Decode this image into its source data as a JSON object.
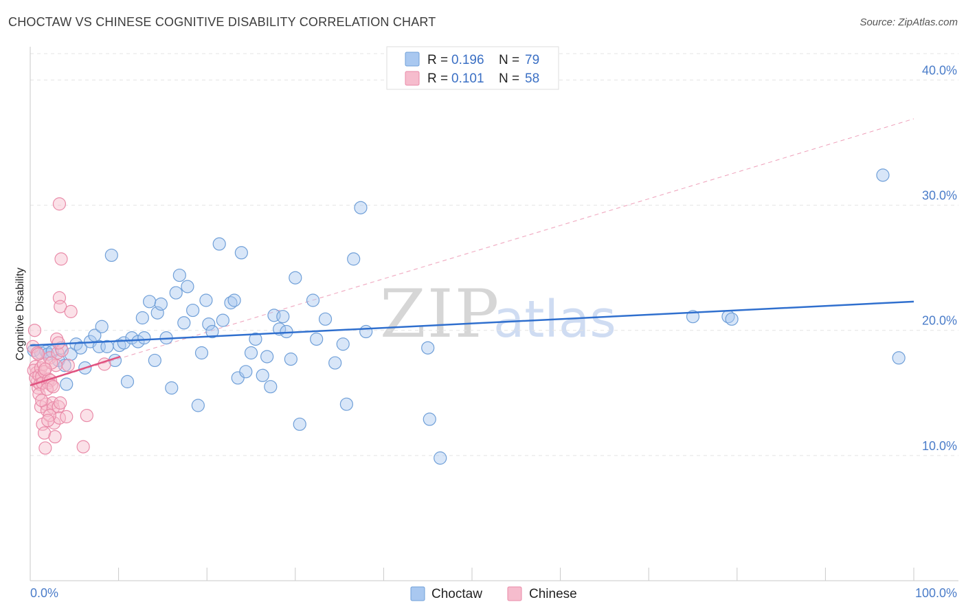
{
  "header": {
    "title": "CHOCTAW VS CHINESE COGNITIVE DISABILITY CORRELATION CHART",
    "source": "Source: ZipAtlas.com"
  },
  "colors": {
    "choctaw_fill": "#a9c8f0",
    "choctaw_stroke": "#6f9fd8",
    "choctaw_line": "#2f6fce",
    "chinese_fill": "#f6bccd",
    "chinese_stroke": "#e98aa8",
    "chinese_line": "#e0517f",
    "grid": "#e4e4e4"
  },
  "watermark": {
    "part1": "ZIP",
    "part2": "atlas"
  },
  "legend": {
    "r_label": "R =",
    "n_label": "N =",
    "rows": [
      {
        "series": "Choctaw",
        "r": "0.196",
        "n": "79"
      },
      {
        "series": "Chinese",
        "r": "0.101",
        "n": "58"
      }
    ]
  },
  "bottom_legend": [
    "Choctaw",
    "Chinese"
  ],
  "chart_data": {
    "type": "scatter",
    "title": "CHOCTAW VS CHINESE COGNITIVE DISABILITY CORRELATION CHART",
    "xlabel": "",
    "ylabel": "Cognitive Disability",
    "xlim": [
      0,
      100
    ],
    "ylim": [
      0,
      42
    ],
    "x_tick_labels": [
      "0.0%",
      "100.0%"
    ],
    "y_ticks": [
      10,
      20,
      30,
      40
    ],
    "y_tick_labels": [
      "10.0%",
      "20.0%",
      "30.0%",
      "40.0%"
    ],
    "series": [
      {
        "name": "Choctaw",
        "r": 0.196,
        "n": 79,
        "trend": {
          "x": [
            0,
            100
          ],
          "y": [
            18.8,
            22.3
          ]
        },
        "points": [
          [
            0.4,
            18.4
          ],
          [
            1.2,
            18.2
          ],
          [
            1.8,
            18.3
          ],
          [
            2.0,
            18.1
          ],
          [
            2.5,
            18.3
          ],
          [
            3.2,
            17.6
          ],
          [
            3.5,
            18.6
          ],
          [
            3.9,
            17.2
          ],
          [
            4.1,
            15.7
          ],
          [
            4.6,
            18.1
          ],
          [
            5.2,
            18.9
          ],
          [
            5.7,
            18.6
          ],
          [
            6.2,
            17.0
          ],
          [
            6.8,
            19.1
          ],
          [
            7.3,
            19.6
          ],
          [
            7.8,
            18.7
          ],
          [
            8.1,
            20.3
          ],
          [
            8.7,
            18.7
          ],
          [
            9.2,
            26.0
          ],
          [
            9.6,
            17.6
          ],
          [
            10.1,
            18.8
          ],
          [
            10.6,
            19.0
          ],
          [
            11.0,
            15.9
          ],
          [
            11.5,
            19.4
          ],
          [
            12.2,
            19.1
          ],
          [
            12.7,
            21.0
          ],
          [
            12.9,
            19.4
          ],
          [
            13.5,
            22.3
          ],
          [
            14.1,
            17.6
          ],
          [
            14.4,
            21.4
          ],
          [
            14.8,
            22.1
          ],
          [
            15.4,
            19.4
          ],
          [
            16.0,
            15.4
          ],
          [
            16.5,
            23.0
          ],
          [
            16.9,
            24.4
          ],
          [
            17.4,
            20.6
          ],
          [
            17.8,
            23.5
          ],
          [
            18.4,
            21.6
          ],
          [
            19.0,
            14.0
          ],
          [
            19.4,
            18.2
          ],
          [
            19.9,
            22.4
          ],
          [
            20.2,
            20.5
          ],
          [
            20.6,
            19.9
          ],
          [
            21.4,
            26.9
          ],
          [
            21.8,
            20.8
          ],
          [
            22.7,
            22.2
          ],
          [
            23.1,
            22.4
          ],
          [
            23.5,
            16.2
          ],
          [
            23.9,
            26.2
          ],
          [
            24.4,
            16.7
          ],
          [
            25.0,
            18.2
          ],
          [
            25.5,
            19.3
          ],
          [
            26.3,
            16.4
          ],
          [
            26.8,
            17.9
          ],
          [
            27.2,
            15.5
          ],
          [
            27.6,
            21.2
          ],
          [
            28.2,
            20.1
          ],
          [
            28.6,
            21.1
          ],
          [
            29.0,
            19.9
          ],
          [
            29.5,
            17.7
          ],
          [
            30.0,
            24.2
          ],
          [
            30.5,
            12.5
          ],
          [
            32.0,
            22.4
          ],
          [
            32.4,
            19.3
          ],
          [
            33.4,
            20.9
          ],
          [
            34.5,
            17.4
          ],
          [
            35.4,
            18.9
          ],
          [
            35.8,
            14.1
          ],
          [
            36.6,
            25.7
          ],
          [
            37.4,
            29.8
          ],
          [
            38.0,
            19.9
          ],
          [
            45.0,
            18.6
          ],
          [
            45.2,
            12.9
          ],
          [
            46.4,
            9.8
          ],
          [
            75.0,
            21.1
          ],
          [
            79.0,
            21.1
          ],
          [
            79.4,
            20.9
          ],
          [
            96.5,
            32.4
          ],
          [
            98.3,
            17.8
          ]
        ]
      },
      {
        "name": "Chinese",
        "r": 0.101,
        "n": 58,
        "trend": {
          "x": [
            0,
            10.2
          ],
          "y": [
            15.6,
            17.9
          ]
        },
        "trend_dashed": {
          "x": [
            0,
            100
          ],
          "y": [
            15.6,
            36.9
          ]
        },
        "points": [
          [
            0.3,
            18.7
          ],
          [
            0.5,
            20.0
          ],
          [
            0.6,
            17.1
          ],
          [
            0.7,
            16.6
          ],
          [
            0.8,
            15.9
          ],
          [
            0.9,
            15.4
          ],
          [
            0.4,
            16.8
          ],
          [
            0.6,
            16.2
          ],
          [
            0.8,
            18.2
          ],
          [
            1.0,
            16.4
          ],
          [
            1.1,
            15.7
          ],
          [
            1.2,
            17.0
          ],
          [
            1.3,
            16.3
          ],
          [
            1.4,
            15.8
          ],
          [
            1.5,
            17.3
          ],
          [
            1.6,
            16.7
          ],
          [
            1.0,
            14.9
          ],
          [
            1.2,
            13.9
          ],
          [
            1.4,
            12.5
          ],
          [
            1.6,
            11.8
          ],
          [
            1.7,
            10.6
          ],
          [
            1.8,
            14.1
          ],
          [
            1.9,
            13.6
          ],
          [
            2.0,
            15.8
          ],
          [
            2.1,
            16.1
          ],
          [
            2.2,
            17.8
          ],
          [
            2.3,
            16.0
          ],
          [
            2.4,
            15.6
          ],
          [
            2.5,
            14.2
          ],
          [
            2.6,
            13.8
          ],
          [
            2.7,
            12.6
          ],
          [
            2.8,
            11.5
          ],
          [
            2.9,
            17.2
          ],
          [
            3.0,
            19.3
          ],
          [
            3.1,
            18.2
          ],
          [
            3.2,
            13.9
          ],
          [
            3.3,
            13.0
          ],
          [
            2.4,
            17.4
          ],
          [
            2.2,
            13.2
          ],
          [
            2.0,
            12.8
          ],
          [
            1.9,
            15.3
          ],
          [
            2.6,
            15.5
          ],
          [
            3.4,
            14.2
          ],
          [
            3.6,
            18.4
          ],
          [
            3.2,
            19.0
          ],
          [
            0.9,
            18.1
          ],
          [
            1.3,
            14.4
          ],
          [
            1.7,
            16.9
          ],
          [
            3.3,
            30.1
          ],
          [
            3.5,
            25.7
          ],
          [
            3.3,
            22.6
          ],
          [
            3.4,
            21.9
          ],
          [
            4.6,
            21.5
          ],
          [
            4.1,
            13.1
          ],
          [
            4.3,
            17.2
          ],
          [
            6.4,
            13.2
          ],
          [
            6.0,
            10.7
          ],
          [
            8.4,
            17.3
          ]
        ]
      }
    ]
  }
}
